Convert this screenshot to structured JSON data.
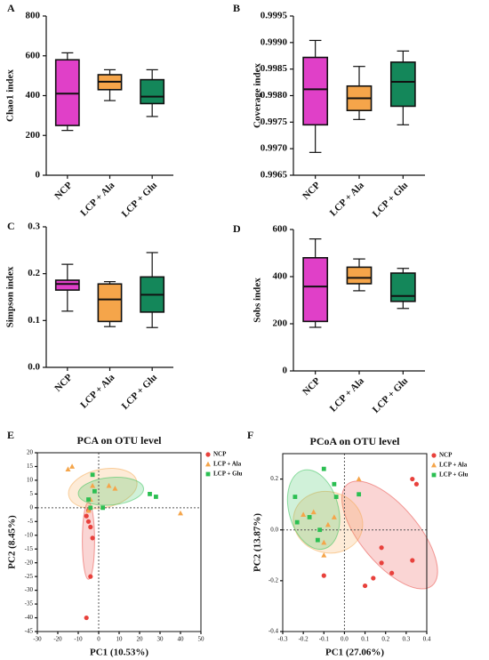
{
  "chart_data": [
    {
      "type": "box",
      "panel": "A",
      "ylabel": "Chao1 index",
      "categories": [
        "NCP",
        "LCP + Ala",
        "LCP + Glu"
      ],
      "colors": [
        "#e040c8",
        "#f5a54a",
        "#14875a"
      ],
      "boxes": [
        {
          "min": 225,
          "q1": 250,
          "median": 410,
          "q3": 580,
          "max": 615
        },
        {
          "min": 375,
          "q1": 430,
          "median": 470,
          "q3": 505,
          "max": 530
        },
        {
          "min": 295,
          "q1": 360,
          "median": 395,
          "q3": 480,
          "max": 530
        }
      ],
      "ylim": [
        0,
        800
      ],
      "yticks": [
        0,
        200,
        400,
        600,
        800
      ]
    },
    {
      "type": "box",
      "panel": "B",
      "ylabel": "Coverage index",
      "categories": [
        "NCP",
        "LCP + Ala",
        "LCP + Glu"
      ],
      "colors": [
        "#e040c8",
        "#f5a54a",
        "#14875a"
      ],
      "boxes": [
        {
          "min": 0.99693,
          "q1": 0.99745,
          "median": 0.99812,
          "q3": 0.99872,
          "max": 0.99904
        },
        {
          "min": 0.99755,
          "q1": 0.99772,
          "median": 0.99795,
          "q3": 0.99818,
          "max": 0.99855
        },
        {
          "min": 0.99745,
          "q1": 0.9978,
          "median": 0.99826,
          "q3": 0.99863,
          "max": 0.99884
        }
      ],
      "ylim": [
        0.9965,
        0.9995
      ],
      "yticks": [
        0.9965,
        {
          "value": 0.997,
          "label": "0.9970"
        },
        0.9975,
        {
          "value": 0.998,
          "label": "0.9980"
        },
        0.9985,
        {
          "value": 0.999,
          "label": "0.9990"
        },
        0.9995
      ]
    },
    {
      "type": "box",
      "panel": "C",
      "ylabel": "Simpson index",
      "categories": [
        "NCP",
        "LCP + Ala",
        "LCP + Glu"
      ],
      "colors": [
        "#e040c8",
        "#f5a54a",
        "#14875a"
      ],
      "boxes": [
        {
          "min": 0.12,
          "q1": 0.165,
          "median": 0.178,
          "q3": 0.186,
          "max": 0.22
        },
        {
          "min": 0.087,
          "q1": 0.098,
          "median": 0.145,
          "q3": 0.178,
          "max": 0.183
        },
        {
          "min": 0.085,
          "q1": 0.118,
          "median": 0.155,
          "q3": 0.193,
          "max": 0.245
        }
      ],
      "ylim": [
        0,
        0.3
      ],
      "yticks": [
        {
          "value": 0,
          "label": "0.0"
        },
        0.1,
        0.2,
        0.3
      ]
    },
    {
      "type": "box",
      "panel": "D",
      "ylabel": "Sobs index",
      "categories": [
        "NCP",
        "LCP + Ala",
        "LCP + Glu"
      ],
      "colors": [
        "#e040c8",
        "#f5a54a",
        "#14875a"
      ],
      "boxes": [
        {
          "min": 185,
          "q1": 210,
          "median": 358,
          "q3": 480,
          "max": 560
        },
        {
          "min": 340,
          "q1": 370,
          "median": 395,
          "q3": 440,
          "max": 475
        },
        {
          "min": 265,
          "q1": 295,
          "median": 318,
          "q3": 415,
          "max": 435
        }
      ],
      "ylim": [
        0,
        600
      ],
      "yticks": [
        0,
        200,
        400,
        600
      ]
    },
    {
      "type": "scatter",
      "panel": "E",
      "title": "PCA on OTU level",
      "xlabel": "PC1 (10.53%)",
      "ylabel": "PC2 (8.45%)",
      "xlim": [
        -30,
        50
      ],
      "xticks": [
        -30,
        -20,
        -10,
        0,
        10,
        20,
        30,
        40,
        50
      ],
      "ylim": [
        -45,
        20
      ],
      "yticks": [
        -45,
        -40,
        -35,
        -30,
        -25,
        -20,
        -15,
        -10,
        -5,
        0,
        5,
        10,
        15,
        20
      ],
      "legend": "top-right",
      "series": [
        {
          "name": "NCP",
          "color": "#e8413c",
          "marker": "circle",
          "x": [
            -6,
            -5,
            -4,
            -3,
            -4,
            -6,
            -5
          ],
          "y": [
            -3,
            -5,
            -7,
            -11,
            -25,
            -40,
            -1
          ],
          "ellipse": {
            "center": [
              -5,
              -12
            ],
            "radii": [
              3,
              14
            ],
            "angle": 0
          }
        },
        {
          "name": "LCP + Ala",
          "color": "#f5a54a",
          "marker": "triangle",
          "x": [
            -15,
            -13,
            -3,
            5,
            8,
            -5,
            40,
            -4
          ],
          "y": [
            14,
            15,
            8,
            8,
            7,
            -1,
            -2,
            3
          ],
          "ellipse": {
            "center": [
              2,
              7
            ],
            "radii": [
              17,
              7
            ],
            "angle": 12
          }
        },
        {
          "name": "LCP + Glu",
          "color": "#2bbf52",
          "marker": "square",
          "x": [
            -3,
            -5,
            -2,
            2,
            25,
            28,
            -4
          ],
          "y": [
            12,
            3,
            6,
            0,
            5,
            4,
            0
          ],
          "ellipse": {
            "center": [
              6,
              6
            ],
            "radii": [
              16,
              5
            ],
            "angle": 5
          }
        }
      ]
    },
    {
      "type": "scatter",
      "panel": "F",
      "title": "PCoA on OTU level",
      "xlabel": "PC1 (27.06%)",
      "ylabel": "PC2 (13.87%)",
      "xlim": [
        -0.3,
        0.4
      ],
      "xticks": [
        -0.3,
        -0.2,
        -0.1,
        {
          "value": 0,
          "label": "0.0"
        },
        0.1,
        0.2,
        0.3,
        0.4
      ],
      "ylim": [
        -0.4,
        0.3
      ],
      "yticks": [
        -0.4,
        -0.2,
        {
          "value": 0,
          "label": "0.0"
        },
        0.2
      ],
      "legend": "top-right",
      "series": [
        {
          "name": "NCP",
          "color": "#e8413c",
          "marker": "circle",
          "x": [
            0.33,
            0.35,
            0.18,
            0.1,
            0.14,
            0.18,
            0.23,
            0.33,
            -0.1
          ],
          "y": [
            0.2,
            0.18,
            -0.07,
            -0.22,
            -0.19,
            -0.13,
            -0.17,
            -0.12,
            -0.18
          ],
          "ellipse": {
            "center": [
              0.22,
              -0.02
            ],
            "radii": [
              0.14,
              0.26
            ],
            "angle": 40
          }
        },
        {
          "name": "LCP + Ala",
          "color": "#f5a54a",
          "marker": "triangle",
          "x": [
            -0.2,
            -0.15,
            -0.05,
            -0.08,
            -0.1,
            -0.1,
            0.07
          ],
          "y": [
            0.06,
            0.07,
            0.05,
            0.02,
            -0.1,
            -0.05,
            0.2
          ],
          "ellipse": {
            "center": [
              -0.08,
              0.03
            ],
            "radii": [
              0.17,
              0.12
            ],
            "angle": -15
          }
        },
        {
          "name": "LCP + Glu",
          "color": "#2bbf52",
          "marker": "square",
          "x": [
            -0.1,
            -0.05,
            -0.24,
            -0.23,
            -0.17,
            -0.12,
            -0.13,
            0.07,
            -0.04
          ],
          "y": [
            0.24,
            0.18,
            0.13,
            0.03,
            0.05,
            0,
            -0.04,
            0.14,
            0.13
          ],
          "ellipse": {
            "center": [
              -0.15,
              0.08
            ],
            "radii": [
              0.12,
              0.16
            ],
            "angle": 15
          }
        }
      ]
    }
  ]
}
